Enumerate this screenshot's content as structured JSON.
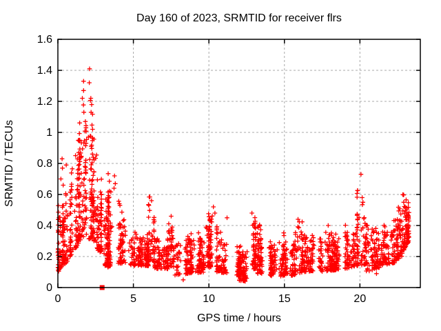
{
  "window": {
    "background": "#ffffff"
  },
  "chart_data": {
    "type": "scatter",
    "title": "Day 160 of 2023, SRMTID for receiver flrs",
    "xlabel": "GPS time / hours",
    "ylabel": "SRMTID / TECUs",
    "xlim": [
      0,
      24
    ],
    "ylim": [
      0,
      1.6
    ],
    "xticks": [
      0,
      5,
      10,
      15,
      20
    ],
    "xtick_labels": [
      "0",
      "5",
      "10",
      "15",
      "20"
    ],
    "yticks": [
      0,
      0.2,
      0.4,
      0.6,
      0.8,
      1,
      1.2,
      1.4,
      1.6
    ],
    "ytick_labels": [
      "0",
      "0.2",
      "0.4",
      "0.6",
      "0.8",
      "1",
      "1.2",
      "1.4",
      "1.6"
    ],
    "grid": true,
    "grid_color": "#a8a8a8",
    "border_color": "#000000",
    "marker": "plus",
    "marker_color": "#ff0000",
    "marker_size_px": 7,
    "series_name": "SRMTID for receiver flrs",
    "envelope_bands": [
      [
        0.0,
        0.3,
        0.1,
        0.45,
        0.13,
        0.42,
        40
      ],
      [
        0.3,
        0.8,
        0.14,
        0.55,
        0.18,
        0.5,
        70
      ],
      [
        0.8,
        1.4,
        0.2,
        0.62,
        0.28,
        0.88,
        90
      ],
      [
        1.4,
        1.9,
        0.3,
        0.98,
        0.34,
        1.06,
        90
      ],
      [
        1.9,
        2.4,
        0.32,
        1.12,
        0.3,
        0.96,
        90
      ],
      [
        2.4,
        2.9,
        0.26,
        0.92,
        0.22,
        0.6,
        70
      ],
      [
        2.9,
        3.3,
        0.13,
        0.55,
        0.15,
        0.5,
        50
      ],
      [
        3.3,
        4.0,
        0.13,
        0.62,
        0.17,
        0.55,
        80
      ],
      [
        4.0,
        4.6,
        0.15,
        0.5,
        0.16,
        0.35,
        60
      ],
      [
        4.6,
        6.0,
        0.14,
        0.33,
        0.14,
        0.3,
        130
      ],
      [
        6.0,
        6.4,
        0.16,
        0.55,
        0.16,
        0.4,
        45
      ],
      [
        6.4,
        7.3,
        0.12,
        0.3,
        0.12,
        0.28,
        85
      ],
      [
        7.3,
        7.7,
        0.13,
        0.45,
        0.13,
        0.35,
        45
      ],
      [
        7.7,
        9.7,
        0.08,
        0.28,
        0.1,
        0.32,
        180
      ],
      [
        9.7,
        10.5,
        0.12,
        0.42,
        0.14,
        0.5,
        80
      ],
      [
        10.5,
        11.3,
        0.1,
        0.35,
        0.09,
        0.28,
        75
      ],
      [
        11.3,
        12.6,
        0.05,
        0.24,
        0.04,
        0.22,
        115
      ],
      [
        12.6,
        13.1,
        0.12,
        0.48,
        0.12,
        0.38,
        55
      ],
      [
        13.1,
        13.8,
        0.09,
        0.38,
        0.09,
        0.3,
        65
      ],
      [
        13.8,
        14.6,
        0.07,
        0.26,
        0.08,
        0.26,
        70
      ],
      [
        14.6,
        15.3,
        0.07,
        0.33,
        0.08,
        0.3,
        65
      ],
      [
        15.3,
        16.2,
        0.07,
        0.26,
        0.1,
        0.4,
        80
      ],
      [
        16.2,
        17.2,
        0.1,
        0.3,
        0.11,
        0.32,
        90
      ],
      [
        17.2,
        19.0,
        0.1,
        0.3,
        0.12,
        0.32,
        160
      ],
      [
        19.0,
        19.8,
        0.12,
        0.36,
        0.14,
        0.34,
        75
      ],
      [
        19.8,
        20.4,
        0.14,
        0.56,
        0.15,
        0.42,
        65
      ],
      [
        20.4,
        21.3,
        0.1,
        0.35,
        0.13,
        0.33,
        85
      ],
      [
        21.3,
        22.3,
        0.14,
        0.38,
        0.16,
        0.38,
        95
      ],
      [
        22.3,
        22.8,
        0.17,
        0.45,
        0.2,
        0.48,
        60
      ],
      [
        22.8,
        23.25,
        0.22,
        0.55,
        0.3,
        0.5,
        80
      ]
    ],
    "notable_points": [
      [
        2.1,
        1.41
      ],
      [
        1.7,
        1.33
      ],
      [
        2.08,
        1.32
      ],
      [
        1.7,
        1.27
      ],
      [
        1.62,
        1.22
      ],
      [
        2.18,
        1.22
      ],
      [
        1.72,
        1.13
      ],
      [
        2.2,
        1.13
      ],
      [
        1.82,
        1.07
      ],
      [
        1.86,
        1.03
      ],
      [
        2.3,
        1.02
      ],
      [
        2.02,
        0.97
      ],
      [
        1.45,
        0.95
      ],
      [
        0.28,
        0.83
      ],
      [
        0.55,
        0.79
      ],
      [
        0.3,
        0.77
      ],
      [
        0.2,
        0.7
      ],
      [
        0.35,
        0.66
      ],
      [
        3.75,
        0.72
      ],
      [
        3.8,
        0.67
      ],
      [
        3.72,
        0.64
      ],
      [
        6.2,
        0.56
      ],
      [
        7.5,
        0.46
      ],
      [
        10.3,
        0.52
      ],
      [
        10.4,
        0.48
      ],
      [
        11.2,
        0.45
      ],
      [
        12.85,
        0.48
      ],
      [
        15.9,
        0.44
      ],
      [
        17.9,
        0.4
      ],
      [
        20.07,
        0.73
      ],
      [
        20.15,
        0.58
      ],
      [
        20.2,
        0.55
      ],
      [
        22.9,
        0.55
      ],
      [
        23.0,
        0.52
      ],
      [
        0.05,
        0.44
      ],
      [
        12.4,
        0.04
      ],
      [
        12.5,
        0.06
      ],
      [
        8.3,
        0.05
      ],
      [
        21.1,
        0.09
      ]
    ],
    "zero_marker": {
      "x": 2.93,
      "y": 0,
      "style": "filled-square"
    }
  }
}
